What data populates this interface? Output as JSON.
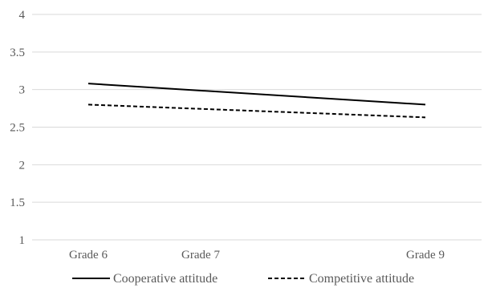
{
  "chart_data": {
    "type": "line",
    "x": [
      "Grade 6",
      "Grade 7",
      "Grade 9"
    ],
    "x_positions": [
      6,
      7,
      9
    ],
    "ylim": [
      1,
      4
    ],
    "y_ticks": [
      "1",
      "1.5",
      "2",
      "2.5",
      "3",
      "3.5",
      "4"
    ],
    "grid": true,
    "legend_position": "bottom",
    "series": [
      {
        "name": "Cooperative attitude",
        "values": [
          3.08,
          null,
          2.8
        ],
        "style": "solid",
        "color": "#000000"
      },
      {
        "name": "Competitive attitude",
        "values": [
          2.8,
          null,
          2.63
        ],
        "style": "dashed",
        "color": "#000000"
      }
    ]
  }
}
